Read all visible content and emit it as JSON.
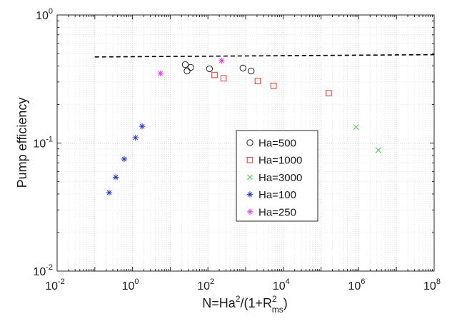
{
  "chart_data": {
    "type": "scatter",
    "xscale": "log",
    "yscale": "log",
    "xlim": [
      0.01,
      100000000
    ],
    "ylim": [
      0.01,
      1
    ],
    "grid": true,
    "xlabel": {
      "base": "N=Ha",
      "sup1": "2",
      "mid": "/(1+R",
      "sup2": "2",
      "sub2": "ms",
      "end": ")"
    },
    "ylabel": "Pump efficiency",
    "x_ticks": [
      {
        "value": 0.01,
        "base": "10",
        "exp": "-2"
      },
      {
        "value": 1,
        "base": "10",
        "exp": "0"
      },
      {
        "value": 100,
        "base": "10",
        "exp": "2"
      },
      {
        "value": 10000,
        "base": "10",
        "exp": "4"
      },
      {
        "value": 1000000,
        "base": "10",
        "exp": "6"
      },
      {
        "value": 100000000,
        "base": "10",
        "exp": "8"
      }
    ],
    "y_ticks": [
      {
        "value": 0.01,
        "base": "10",
        "exp": "-2"
      },
      {
        "value": 0.1,
        "base": "10",
        "exp": "-1"
      },
      {
        "value": 1,
        "base": "10",
        "exp": "0"
      }
    ],
    "reference_line": {
      "style": "dashed",
      "color": "#000000",
      "x": [
        0.1,
        100000000
      ],
      "y": [
        0.47,
        0.49
      ]
    },
    "legend_position": "center-right",
    "series": [
      {
        "name": "Ha=500",
        "marker": "circle",
        "color": "#222222",
        "x": [
          25,
          28,
          35,
          110,
          850,
          1400
        ],
        "y": [
          0.41,
          0.365,
          0.39,
          0.38,
          0.385,
          0.365
        ]
      },
      {
        "name": "Ha=1000",
        "marker": "square",
        "color": "#e8302a",
        "x": [
          150,
          260,
          2100,
          5500,
          160000
        ],
        "y": [
          0.34,
          0.32,
          0.305,
          0.28,
          0.245
        ]
      },
      {
        "name": "Ha=3000",
        "marker": "x",
        "color": "#3ecb3e",
        "x": [
          850000,
          3300000
        ],
        "y": [
          0.133,
          0.088
        ]
      },
      {
        "name": "Ha=100",
        "marker": "asterisk",
        "color": "#2434d6",
        "x": [
          0.24,
          0.36,
          0.6,
          1.2,
          1.8
        ],
        "y": [
          0.041,
          0.054,
          0.075,
          0.11,
          0.135
        ]
      },
      {
        "name": "Ha=250",
        "marker": "asterisk",
        "color": "#e83ae8",
        "x": [
          5.5,
          230
        ],
        "y": [
          0.35,
          0.44
        ]
      }
    ]
  }
}
